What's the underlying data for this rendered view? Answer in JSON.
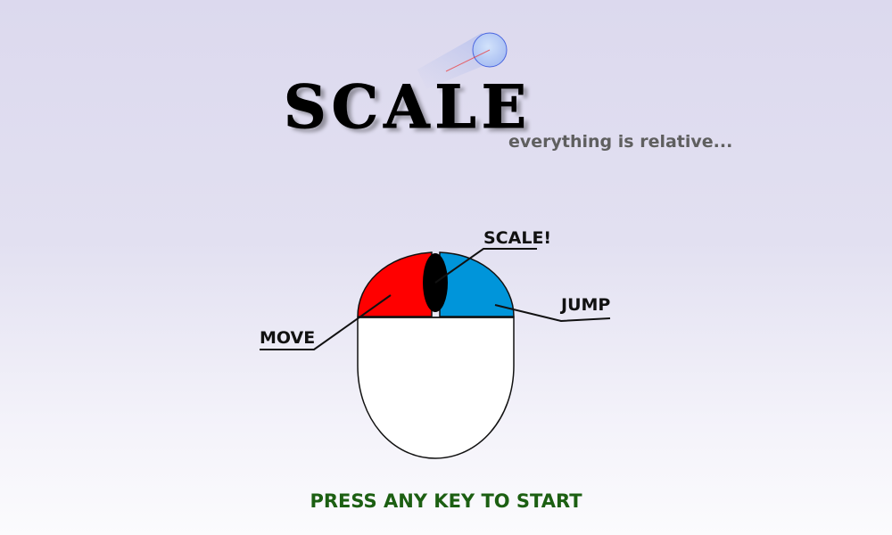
{
  "game": {
    "title": "SCALE",
    "tagline": "everything is relative...",
    "start_prompt": "PRESS ANY KEY TO START"
  },
  "controls": {
    "left_button_label": "MOVE",
    "wheel_label": "SCALE!",
    "right_button_label": "JUMP"
  },
  "colors": {
    "left_button": "#ff0000",
    "right_button": "#0095da",
    "wheel": "#000000",
    "mouse_body": "#ffffff",
    "start_text": "#1c5f12",
    "tagline": "#5f5f5f"
  }
}
